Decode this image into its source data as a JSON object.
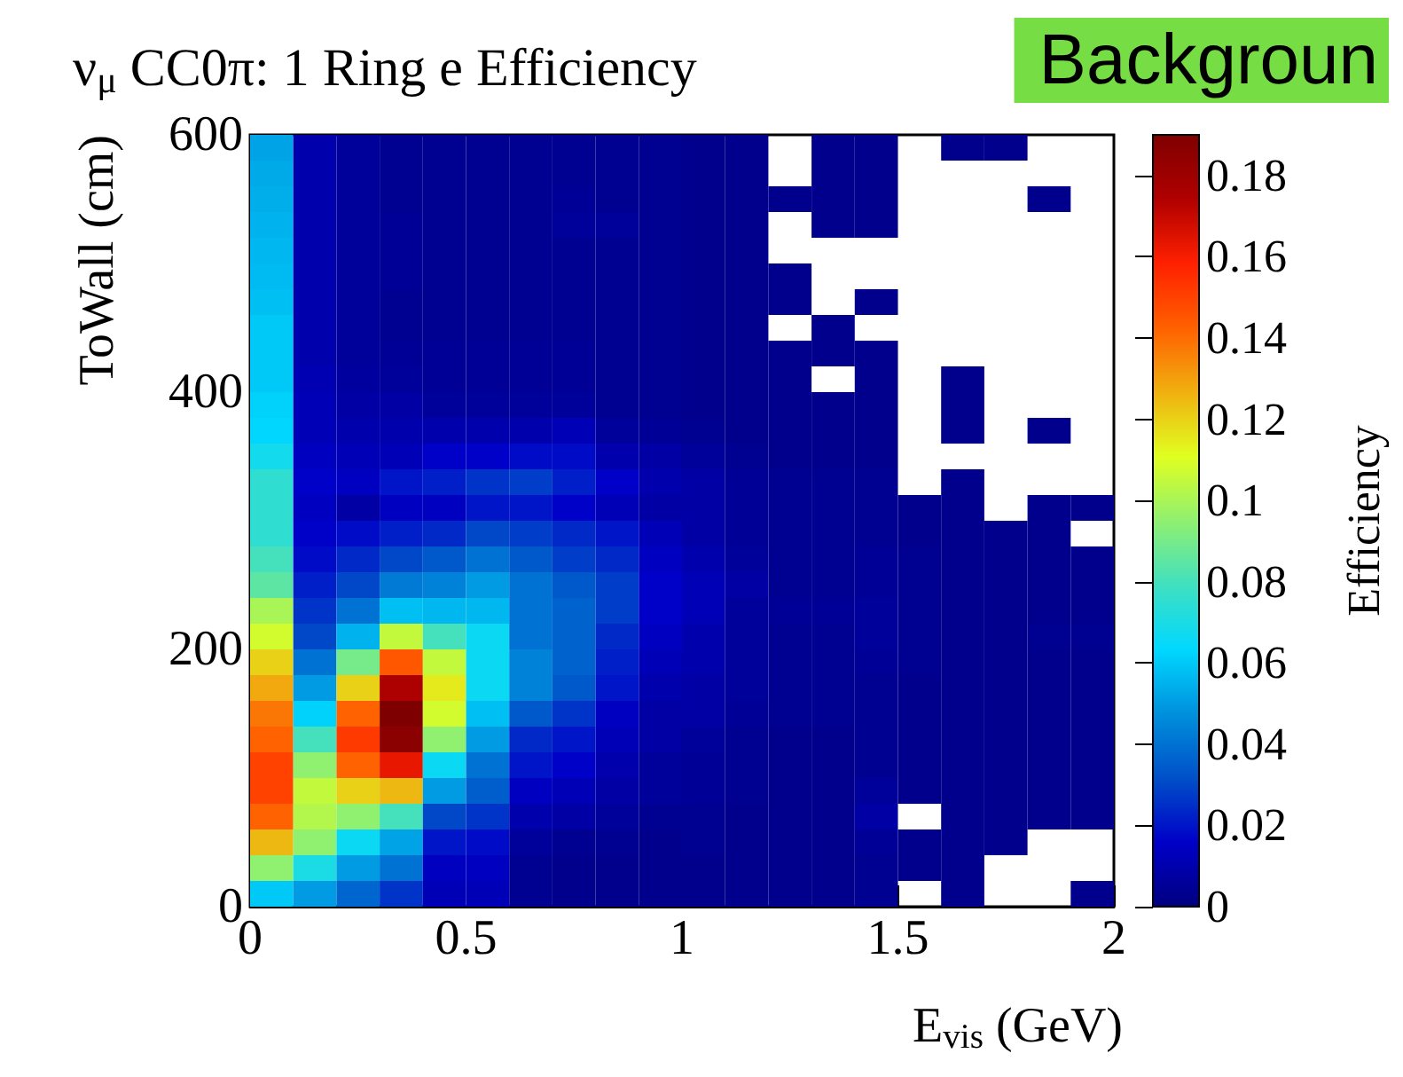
{
  "chart_data": {
    "type": "heatmap",
    "title": "ν$_{μ}$ CC0π: 1 Ring e Efficiency",
    "xlabel": "E$_{vis}$ (GeV)",
    "ylabel": "ToWall (cm)",
    "clabel": "Efficiency",
    "annotations": [
      "Backgroun"
    ],
    "xlim": [
      0,
      2
    ],
    "xticks": [
      0,
      0.5,
      1,
      1.5,
      2
    ],
    "ylim": [
      0,
      600
    ],
    "yticks": [
      0,
      200,
      400,
      600
    ],
    "clim": [
      0,
      0.19
    ],
    "cticks": [
      0,
      0.02,
      0.04,
      0.06,
      0.08,
      0.1,
      0.12,
      0.14,
      0.16,
      0.18
    ],
    "grid": false,
    "cells": [
      [
        0.052,
        0.01,
        0.006,
        0.004,
        0.004,
        0.004,
        0.004,
        0.004,
        0.004,
        0.004,
        0.003,
        0.003,
        null,
        0.003,
        0.003,
        null,
        0.003,
        0.003,
        null,
        null
      ],
      [
        0.053,
        0.01,
        0.006,
        0.004,
        0.004,
        0.004,
        0.004,
        0.004,
        0.004,
        0.004,
        0.003,
        0.003,
        null,
        0.003,
        0.003,
        null,
        null,
        null,
        null,
        null
      ],
      [
        0.054,
        0.01,
        0.006,
        0.004,
        0.004,
        0.004,
        0.004,
        0.005,
        0.004,
        0.004,
        0.003,
        0.003,
        0.003,
        0.003,
        0.003,
        null,
        null,
        null,
        0.003,
        null
      ],
      [
        0.055,
        0.01,
        0.006,
        0.005,
        0.004,
        0.004,
        0.004,
        0.006,
        0.006,
        0.004,
        0.003,
        0.003,
        null,
        0.003,
        0.003,
        null,
        null,
        null,
        null,
        null
      ],
      [
        0.056,
        0.01,
        0.006,
        0.005,
        0.004,
        0.004,
        0.004,
        0.004,
        0.004,
        0.004,
        0.003,
        0.003,
        null,
        null,
        null,
        null,
        null,
        null,
        null,
        null
      ],
      [
        0.057,
        0.01,
        0.006,
        0.005,
        0.004,
        0.004,
        0.004,
        0.004,
        0.004,
        0.004,
        0.003,
        0.003,
        0.003,
        null,
        null,
        null,
        null,
        null,
        null,
        null
      ],
      [
        0.058,
        0.01,
        0.006,
        0.004,
        0.004,
        0.004,
        0.004,
        0.004,
        0.004,
        0.004,
        0.003,
        0.003,
        0.003,
        null,
        0.003,
        null,
        null,
        null,
        null,
        null
      ],
      [
        0.06,
        0.01,
        0.006,
        0.004,
        0.004,
        0.004,
        0.004,
        0.004,
        0.004,
        0.004,
        0.003,
        0.003,
        null,
        0.003,
        null,
        null,
        null,
        null,
        null,
        null
      ],
      [
        0.06,
        0.01,
        0.006,
        0.005,
        0.005,
        0.005,
        0.005,
        0.005,
        0.004,
        0.004,
        0.003,
        0.003,
        0.003,
        0.003,
        0.003,
        null,
        null,
        null,
        null,
        null
      ],
      [
        0.06,
        0.011,
        0.007,
        0.006,
        0.005,
        0.005,
        0.005,
        0.005,
        0.004,
        0.004,
        0.003,
        0.003,
        0.003,
        null,
        0.003,
        null,
        0.003,
        null,
        null,
        null
      ],
      [
        0.062,
        0.012,
        0.008,
        0.008,
        0.006,
        0.006,
        0.006,
        0.006,
        0.004,
        0.004,
        0.003,
        0.003,
        0.003,
        0.003,
        0.003,
        null,
        0.003,
        null,
        null,
        null
      ],
      [
        0.063,
        0.012,
        0.01,
        0.01,
        0.01,
        0.01,
        0.01,
        0.012,
        0.006,
        0.005,
        0.004,
        0.003,
        0.003,
        0.003,
        0.003,
        null,
        0.003,
        null,
        0.003,
        null
      ],
      [
        0.068,
        0.014,
        0.012,
        0.012,
        0.016,
        0.016,
        0.018,
        0.018,
        0.01,
        0.008,
        0.006,
        0.004,
        0.003,
        0.003,
        0.003,
        null,
        null,
        null,
        null,
        null
      ],
      [
        0.075,
        0.016,
        0.014,
        0.02,
        0.022,
        0.026,
        0.028,
        0.022,
        0.016,
        0.01,
        0.008,
        0.005,
        0.004,
        0.004,
        0.004,
        null,
        0.003,
        null,
        null,
        null
      ],
      [
        0.075,
        0.014,
        0.008,
        0.014,
        0.014,
        0.02,
        0.02,
        0.016,
        0.012,
        0.008,
        0.008,
        0.005,
        0.004,
        0.004,
        0.004,
        0.003,
        0.003,
        null,
        0.003,
        0.003
      ],
      [
        0.075,
        0.016,
        0.018,
        0.022,
        0.024,
        0.03,
        0.028,
        0.024,
        0.02,
        0.012,
        0.008,
        0.005,
        0.004,
        0.004,
        0.004,
        0.003,
        0.003,
        0.003,
        0.003,
        null
      ],
      [
        0.08,
        0.018,
        0.024,
        0.03,
        0.034,
        0.04,
        0.034,
        0.028,
        0.024,
        0.014,
        0.01,
        0.006,
        0.004,
        0.004,
        0.005,
        0.004,
        0.003,
        0.003,
        0.003,
        0.003
      ],
      [
        0.085,
        0.022,
        0.03,
        0.042,
        0.044,
        0.05,
        0.04,
        0.034,
        0.028,
        0.016,
        0.012,
        0.008,
        0.004,
        0.004,
        0.005,
        0.004,
        0.003,
        0.003,
        0.003,
        0.003
      ],
      [
        0.1,
        0.026,
        0.04,
        0.058,
        0.056,
        0.056,
        0.04,
        0.036,
        0.028,
        0.016,
        0.012,
        0.006,
        0.005,
        0.005,
        0.006,
        0.004,
        0.003,
        0.003,
        0.003,
        0.003
      ],
      [
        0.108,
        0.03,
        0.055,
        0.105,
        0.08,
        0.066,
        0.04,
        0.036,
        0.024,
        0.014,
        0.01,
        0.006,
        0.004,
        0.004,
        0.006,
        0.004,
        0.003,
        0.003,
        0.004,
        0.004
      ],
      [
        0.12,
        0.04,
        0.09,
        0.145,
        0.105,
        0.066,
        0.044,
        0.036,
        0.022,
        0.012,
        0.01,
        0.006,
        0.004,
        0.004,
        0.005,
        0.004,
        0.003,
        0.003,
        0.003,
        0.003
      ],
      [
        0.128,
        0.05,
        0.12,
        0.175,
        0.115,
        0.066,
        0.044,
        0.034,
        0.02,
        0.01,
        0.008,
        0.006,
        0.004,
        0.004,
        0.004,
        0.003,
        0.003,
        0.003,
        0.003,
        0.003
      ],
      [
        0.138,
        0.062,
        0.142,
        0.19,
        0.108,
        0.058,
        0.034,
        0.026,
        0.014,
        0.008,
        0.008,
        0.005,
        0.004,
        0.004,
        0.004,
        0.003,
        0.003,
        0.003,
        0.003,
        0.003
      ],
      [
        0.142,
        0.08,
        0.152,
        0.186,
        0.095,
        0.05,
        0.024,
        0.02,
        0.012,
        0.008,
        0.006,
        0.004,
        0.003,
        0.003,
        0.004,
        0.003,
        0.003,
        0.003,
        0.003,
        0.003
      ],
      [
        0.15,
        0.095,
        0.142,
        0.163,
        0.066,
        0.04,
        0.02,
        0.016,
        0.01,
        0.006,
        0.005,
        0.004,
        0.003,
        0.003,
        0.004,
        0.003,
        0.003,
        0.003,
        0.003,
        0.003
      ],
      [
        0.15,
        0.105,
        0.12,
        0.125,
        0.05,
        0.035,
        0.014,
        0.012,
        0.008,
        0.006,
        0.005,
        0.004,
        0.003,
        0.003,
        0.006,
        0.003,
        0.003,
        0.003,
        0.003,
        0.003
      ],
      [
        0.142,
        0.102,
        0.095,
        0.08,
        0.03,
        0.026,
        0.01,
        0.008,
        0.006,
        0.004,
        0.004,
        0.003,
        0.003,
        0.003,
        0.008,
        null,
        0.003,
        0.003,
        0.003,
        0.003
      ],
      [
        0.125,
        0.095,
        0.066,
        0.052,
        0.02,
        0.018,
        0.006,
        0.004,
        0.004,
        0.003,
        0.004,
        0.003,
        0.003,
        0.003,
        0.005,
        0.003,
        0.003,
        0.003,
        null,
        null
      ],
      [
        0.095,
        0.07,
        0.05,
        0.04,
        0.014,
        0.014,
        0.004,
        0.003,
        0.003,
        0.003,
        0.003,
        0.003,
        0.003,
        0.003,
        0.004,
        0.003,
        0.003,
        null,
        null,
        null
      ],
      [
        0.06,
        0.05,
        0.037,
        0.026,
        0.012,
        0.012,
        0.004,
        0.003,
        0.003,
        0.003,
        0.003,
        0.003,
        0.003,
        0.003,
        0.004,
        null,
        0.003,
        null,
        null,
        0.003
      ]
    ]
  }
}
